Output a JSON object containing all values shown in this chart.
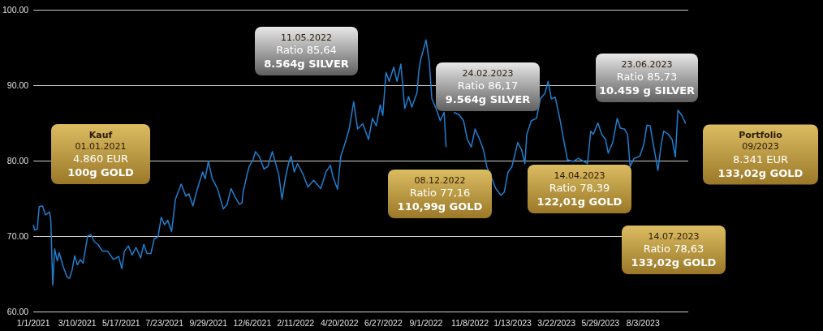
{
  "chart_data": {
    "type": "line",
    "color": "#1f7fd0",
    "x": [
      "2021-01-01",
      "2021-01-03",
      "2021-01-07",
      "2021-01-10",
      "2021-01-15",
      "2021-01-20",
      "2021-01-26",
      "2021-01-28",
      "2021-01-31",
      "2021-02-03",
      "2021-02-07",
      "2021-02-10",
      "2021-02-16",
      "2021-02-22",
      "2021-02-26",
      "2021-03-02",
      "2021-03-06",
      "2021-03-10",
      "2021-03-15",
      "2021-03-19",
      "2021-03-26",
      "2021-03-31",
      "2021-04-05",
      "2021-04-11",
      "2021-04-18",
      "2021-04-26",
      "2021-05-05",
      "2021-05-13",
      "2021-05-18",
      "2021-05-22",
      "2021-05-28",
      "2021-06-03",
      "2021-06-09",
      "2021-06-16",
      "2021-06-21",
      "2021-06-26",
      "2021-07-02",
      "2021-07-07",
      "2021-07-13",
      "2021-07-18",
      "2021-07-23",
      "2021-07-28",
      "2021-08-03",
      "2021-08-09",
      "2021-08-18",
      "2021-08-25",
      "2021-08-30",
      "2021-09-05",
      "2021-09-11",
      "2021-09-20",
      "2021-09-24",
      "2021-09-29",
      "2021-10-05",
      "2021-10-13",
      "2021-10-22",
      "2021-10-28",
      "2021-11-03",
      "2021-11-10",
      "2021-11-16",
      "2021-11-20",
      "2021-11-22",
      "2021-12-01",
      "2021-12-07",
      "2021-12-11",
      "2021-12-17",
      "2021-12-24",
      "2021-12-30",
      "2022-01-06",
      "2022-01-16",
      "2022-01-21",
      "2022-01-26",
      "2022-01-31",
      "2022-02-04",
      "2022-02-09",
      "2022-02-14",
      "2022-02-23",
      "2022-03-02",
      "2022-03-11",
      "2022-03-22",
      "2022-03-30",
      "2022-04-06",
      "2022-04-10",
      "2022-04-17",
      "2022-04-22",
      "2022-04-29",
      "2022-05-05",
      "2022-05-12",
      "2022-05-18",
      "2022-05-26",
      "2022-06-04",
      "2022-06-10",
      "2022-06-16",
      "2022-06-22",
      "2022-06-26",
      "2022-07-01",
      "2022-07-06",
      "2022-07-13",
      "2022-07-18",
      "2022-07-24",
      "2022-07-30",
      "2022-08-05",
      "2022-08-10",
      "2022-08-18",
      "2022-08-21",
      "2022-08-24",
      "2022-09-01",
      "2022-09-06",
      "2022-09-10",
      "2022-09-17",
      "2022-09-23",
      "2022-09-29",
      "2022-10-02",
      "2022-10-07",
      "2022-10-14",
      "2022-10-22",
      "2022-10-29",
      "2022-11-04",
      "2022-11-10",
      "2022-11-16",
      "2022-11-23",
      "2022-11-29",
      "2022-12-04",
      "2022-12-12",
      "2022-12-18",
      "2022-12-26",
      "2022-12-31",
      "2023-01-06",
      "2023-01-12",
      "2023-01-21",
      "2023-01-27",
      "2023-02-01",
      "2023-02-04",
      "2023-02-11",
      "2023-02-19",
      "2023-02-25",
      "2023-03-04",
      "2023-03-09",
      "2023-03-14",
      "2023-03-20",
      "2023-03-27",
      "2023-04-02",
      "2023-04-08",
      "2023-04-17",
      "2023-04-25",
      "2023-05-03",
      "2023-05-09",
      "2023-05-14",
      "2023-05-18",
      "2023-05-25",
      "2023-05-31",
      "2023-06-06",
      "2023-06-10",
      "2023-06-17",
      "2023-06-24",
      "2023-06-29",
      "2023-07-05",
      "2023-07-10",
      "2023-07-14",
      "2023-07-20",
      "2023-07-29",
      "2023-08-04",
      "2023-08-09",
      "2023-08-14",
      "2023-08-19",
      "2023-08-26",
      "2023-08-31",
      "2023-09-04",
      "2023-09-11",
      "2023-09-17",
      "2023-09-22",
      "2023-09-26",
      "2023-10-02",
      "2023-10-08"
    ],
    "values": [
      71.5,
      70.8,
      70.9,
      73.9,
      74.0,
      72.8,
      73.2,
      72.1,
      63.5,
      68.3,
      66.7,
      67.8,
      66.0,
      64.6,
      64.4,
      65.5,
      67.4,
      66.2,
      66.9,
      66.4,
      70.0,
      70.2,
      69.3,
      68.9,
      68.0,
      68.0,
      66.9,
      67.3,
      65.7,
      68.0,
      68.7,
      67.5,
      68.5,
      67.1,
      68.9,
      67.7,
      67.7,
      69.6,
      69.9,
      72.5,
      71.5,
      72.1,
      70.6,
      74.9,
      76.9,
      75.3,
      75.6,
      74.0,
      76.0,
      78.5,
      77.6,
      79.9,
      77.6,
      76.3,
      73.6,
      74.2,
      76.3,
      75.1,
      74.2,
      74.4,
      76.0,
      79.2,
      80.1,
      81.2,
      80.5,
      78.9,
      79.2,
      81.2,
      78.1,
      74.9,
      77.6,
      79.6,
      80.6,
      78.5,
      79.6,
      78.1,
      76.5,
      77.4,
      76.3,
      78.5,
      79.4,
      77.8,
      76.2,
      80.6,
      82.4,
      84.2,
      87.8,
      84.2,
      84.9,
      82.8,
      85.6,
      84.6,
      87.4,
      86.0,
      91.7,
      90.5,
      92.4,
      90.5,
      92.8,
      86.9,
      88.5,
      87.1,
      89.0,
      92.0,
      93.5,
      96.0,
      93.1,
      88.2,
      86.8,
      85.3,
      86.4,
      81.8,
      null,
      86.4,
      86.1,
      85.3,
      82.8,
      81.8,
      84.2,
      82.8,
      81.4,
      79.2,
      77.6,
      76.3,
      75.4,
      75.8,
      78.5,
      79.2,
      82.4,
      81.4,
      79.6,
      83.5,
      85.3,
      85.6,
      88.2,
      88.9,
      90.5,
      88.2,
      88.4,
      85.6,
      82.8,
      80.1,
      79.9,
      80.3,
      79.9,
      79.6,
      83.9,
      83.5,
      85.0,
      83.5,
      82.8,
      81.0,
      82.4,
      85.6,
      84.3,
      84.2,
      83.5,
      79.2,
      80.3,
      80.6,
      82.1,
      84.7,
      84.6,
      82.1,
      78.7,
      82.1,
      83.9,
      83.5,
      82.8,
      80.5,
      86.7,
      86.0,
      84.9
    ],
    "xlim": [
      "2021-01-01",
      "2023-10-12"
    ],
    "xticks": [
      {
        "value": "2021-01-01",
        "label": "1/1/2021"
      },
      {
        "value": "2021-03-10",
        "label": "3/10/2021"
      },
      {
        "value": "2021-05-17",
        "label": "5/17/2021"
      },
      {
        "value": "2021-07-23",
        "label": "7/23/2021"
      },
      {
        "value": "2021-09-29",
        "label": "9/29/2021"
      },
      {
        "value": "2021-12-06",
        "label": "12/6/2021"
      },
      {
        "value": "2022-02-11",
        "label": "2/11/2022"
      },
      {
        "value": "2022-04-20",
        "label": "4/20/2022"
      },
      {
        "value": "2022-06-27",
        "label": "6/27/2022"
      },
      {
        "value": "2022-09-01",
        "label": "9/1/2022"
      },
      {
        "value": "2022-11-08",
        "label": "11/8/2022"
      },
      {
        "value": "2023-01-13",
        "label": "1/13/2023"
      },
      {
        "value": "2023-03-22",
        "label": "3/22/2023"
      },
      {
        "value": "2023-05-29",
        "label": "5/29/2023"
      },
      {
        "value": "2023-08-03",
        "label": "8/3/2023"
      }
    ],
    "ylim": [
      60,
      100
    ],
    "yticks": [
      {
        "value": 60,
        "label": "60.00"
      },
      {
        "value": 70,
        "label": "70.00"
      },
      {
        "value": 80,
        "label": "80.00"
      },
      {
        "value": 90,
        "label": "90.00"
      },
      {
        "value": 100,
        "label": "100.00"
      }
    ],
    "grid": "y",
    "annotations": [
      "Kauf\n01.01.2021\n4.860 EUR\n100g GOLD",
      "11.05.2022\nRatio 85,64\n8.564g SILVER",
      "08.12.2022\nRatio 77,16\n110,99g GOLD",
      "24.02.2023\nRatio 86,17\n9.564g SILVER",
      "14.04.2023\nRatio 78,39\n122,01g GOLD",
      "23.06.2023\nRatio 85,73\n10.459 g SILVER",
      "14.07.2023\nRatio 78,63\n133,02g GOLD",
      "Portfolio\n09/2023\n8.341 EUR\n133,02g GOLD"
    ]
  }
}
